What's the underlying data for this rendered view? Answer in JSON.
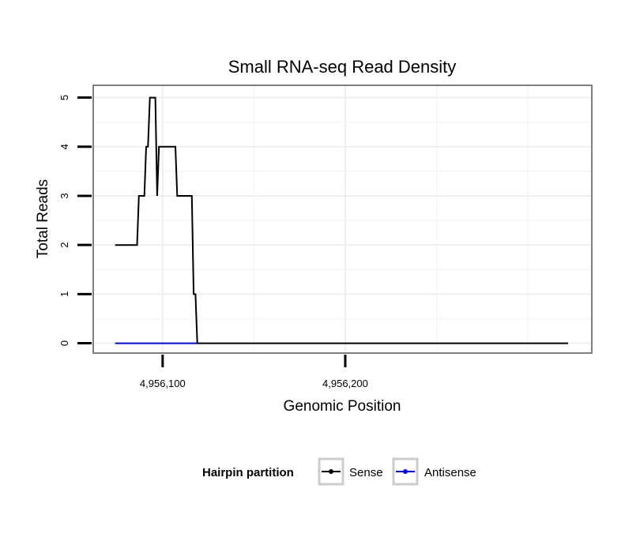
{
  "chart_data": {
    "type": "line",
    "title": "Small RNA-seq Read Density",
    "xlabel": "Genomic Position",
    "ylabel": "Total Reads",
    "xlim": [
      4956062,
      4956335
    ],
    "ylim": [
      -0.2,
      5.25
    ],
    "x_ticks": [
      4956100,
      4956200
    ],
    "x_tick_labels": [
      "4,956,100",
      "4,956,200"
    ],
    "y_ticks": [
      0,
      1,
      2,
      3,
      4,
      5
    ],
    "y_tick_labels": [
      "0",
      "1",
      "2",
      "3",
      "4",
      "5"
    ],
    "grid": true,
    "legend": {
      "title": "Hairpin partition",
      "position": "bottom",
      "entries": [
        {
          "label": "Sense",
          "color": "#000000"
        },
        {
          "label": "Antisense",
          "color": "#0000ff"
        }
      ]
    },
    "series": [
      {
        "name": "Sense",
        "color": "#000000",
        "x": [
          4956074,
          4956086,
          4956087,
          4956090,
          4956091,
          4956092,
          4956093,
          4956096,
          4956097,
          4956098,
          4956099,
          4956107,
          4956108,
          4956116,
          4956117,
          4956118,
          4956119,
          4956322
        ],
        "y": [
          2,
          2,
          3,
          3,
          4,
          4,
          5,
          5,
          3,
          4,
          4,
          4,
          3,
          3,
          1,
          1,
          0,
          0
        ]
      },
      {
        "name": "Antisense",
        "color": "#0000ff",
        "x": [
          4956074,
          4956119
        ],
        "y": [
          0,
          0
        ]
      }
    ]
  }
}
